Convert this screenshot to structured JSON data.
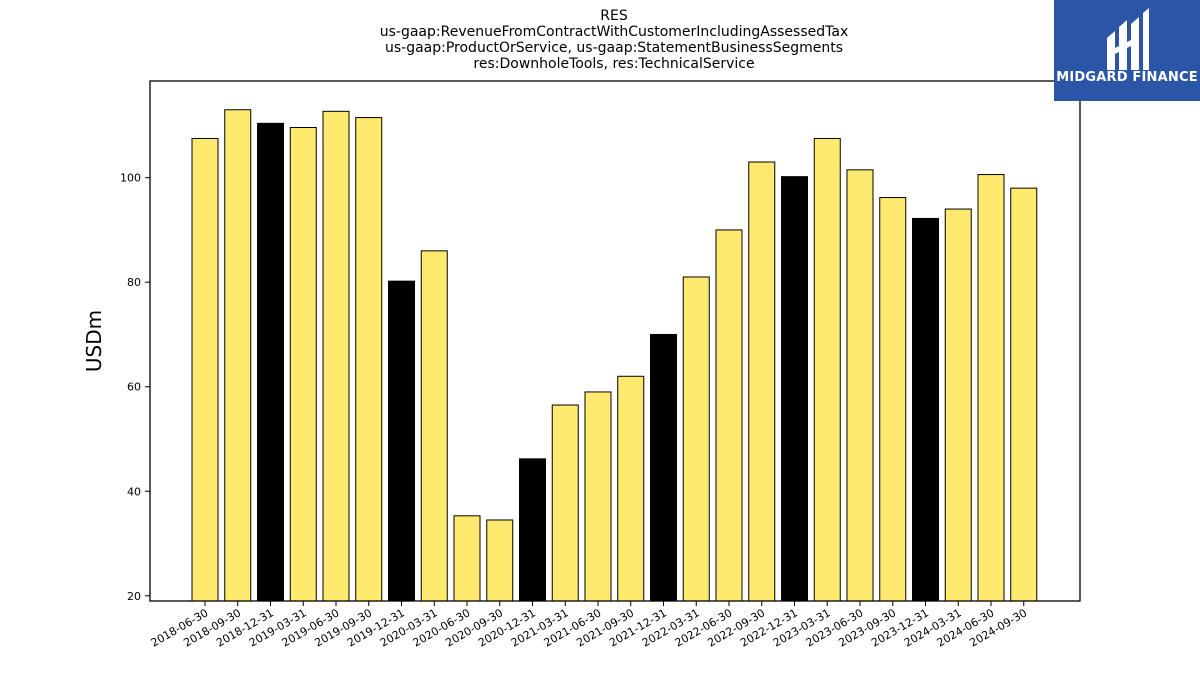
{
  "colors": {
    "bar_default": "#ffe96e",
    "bar_highlight": "#000000",
    "bar_edge": "#000000",
    "logo_bg": "#2b56a8",
    "logo_fg": "#ffffff"
  },
  "logo": {
    "text": "MIDGARD FINANCE",
    "icon": "mf-monogram-icon"
  },
  "chart_data": {
    "type": "bar",
    "title": [
      "RES",
      "us-gaap:RevenueFromContractWithCustomerIncludingAssessedTax",
      "us-gaap:ProductOrService, us-gaap:StatementBusinessSegments",
      "res:DownholeTools, res:TechnicalService"
    ],
    "xlabel": "",
    "ylabel": "USDm",
    "ylim": [
      19,
      118.5
    ],
    "yticks": [
      20,
      40,
      60,
      80,
      100
    ],
    "grid": false,
    "categories": [
      "2018-06-30",
      "2018-09-30",
      "2018-12-31",
      "2019-03-31",
      "2019-06-30",
      "2019-09-30",
      "2019-12-31",
      "2020-03-31",
      "2020-06-30",
      "2020-09-30",
      "2020-12-31",
      "2021-03-31",
      "2021-06-30",
      "2021-09-30",
      "2021-12-31",
      "2022-03-31",
      "2022-06-30",
      "2022-09-30",
      "2022-12-31",
      "2023-03-31",
      "2023-06-30",
      "2023-09-30",
      "2023-12-31",
      "2024-03-31",
      "2024-06-30",
      "2024-09-30"
    ],
    "values": [
      107.5,
      113.0,
      110.4,
      109.6,
      112.7,
      111.5,
      80.2,
      86.0,
      35.3,
      34.5,
      46.2,
      56.5,
      59.0,
      62.0,
      70.0,
      81.0,
      90.0,
      103.0,
      100.2,
      107.5,
      101.5,
      96.2,
      92.2,
      94.0,
      100.6,
      98.0
    ],
    "highlight": [
      false,
      false,
      true,
      false,
      false,
      false,
      true,
      false,
      false,
      false,
      true,
      false,
      false,
      false,
      true,
      false,
      false,
      false,
      true,
      false,
      false,
      false,
      true,
      false,
      false,
      false
    ]
  }
}
